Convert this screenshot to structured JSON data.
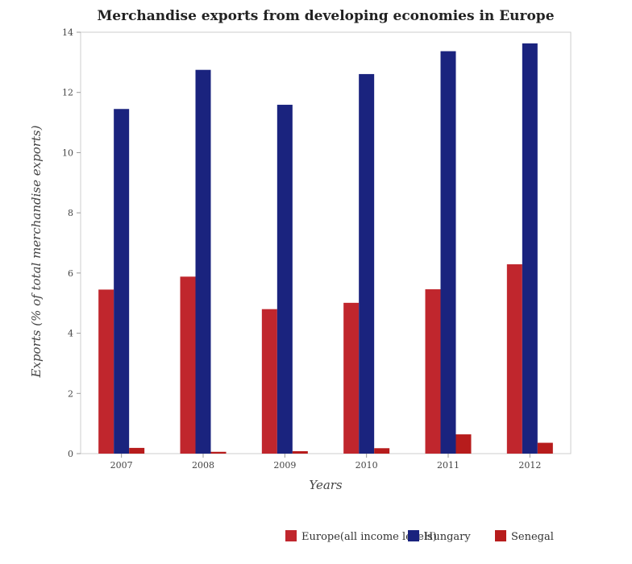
{
  "chart_data": {
    "type": "bar",
    "title": "Merchandise exports from developing economies in Europe",
    "xlabel": "Years",
    "ylabel": "Exports (% of total merchandise exports)",
    "categories": [
      "2007",
      "2008",
      "2009",
      "2010",
      "2011",
      "2012"
    ],
    "ylim": [
      0,
      14
    ],
    "yticks": [
      0,
      2,
      4,
      6,
      8,
      10,
      12,
      14
    ],
    "grid": false,
    "legend_position": "bottom-right",
    "series": [
      {
        "name": "Europe(all income levels)",
        "color": "#c0262d",
        "values": [
          5.45,
          5.88,
          4.8,
          5.01,
          5.46,
          6.29
        ]
      },
      {
        "name": "Hungary",
        "color": "#1a237e",
        "values": [
          11.45,
          12.75,
          11.59,
          12.61,
          13.37,
          13.63
        ]
      },
      {
        "name": "Senegal",
        "color": "#b71c1c",
        "values": [
          0.19,
          0.06,
          0.08,
          0.18,
          0.64,
          0.36
        ]
      }
    ]
  }
}
